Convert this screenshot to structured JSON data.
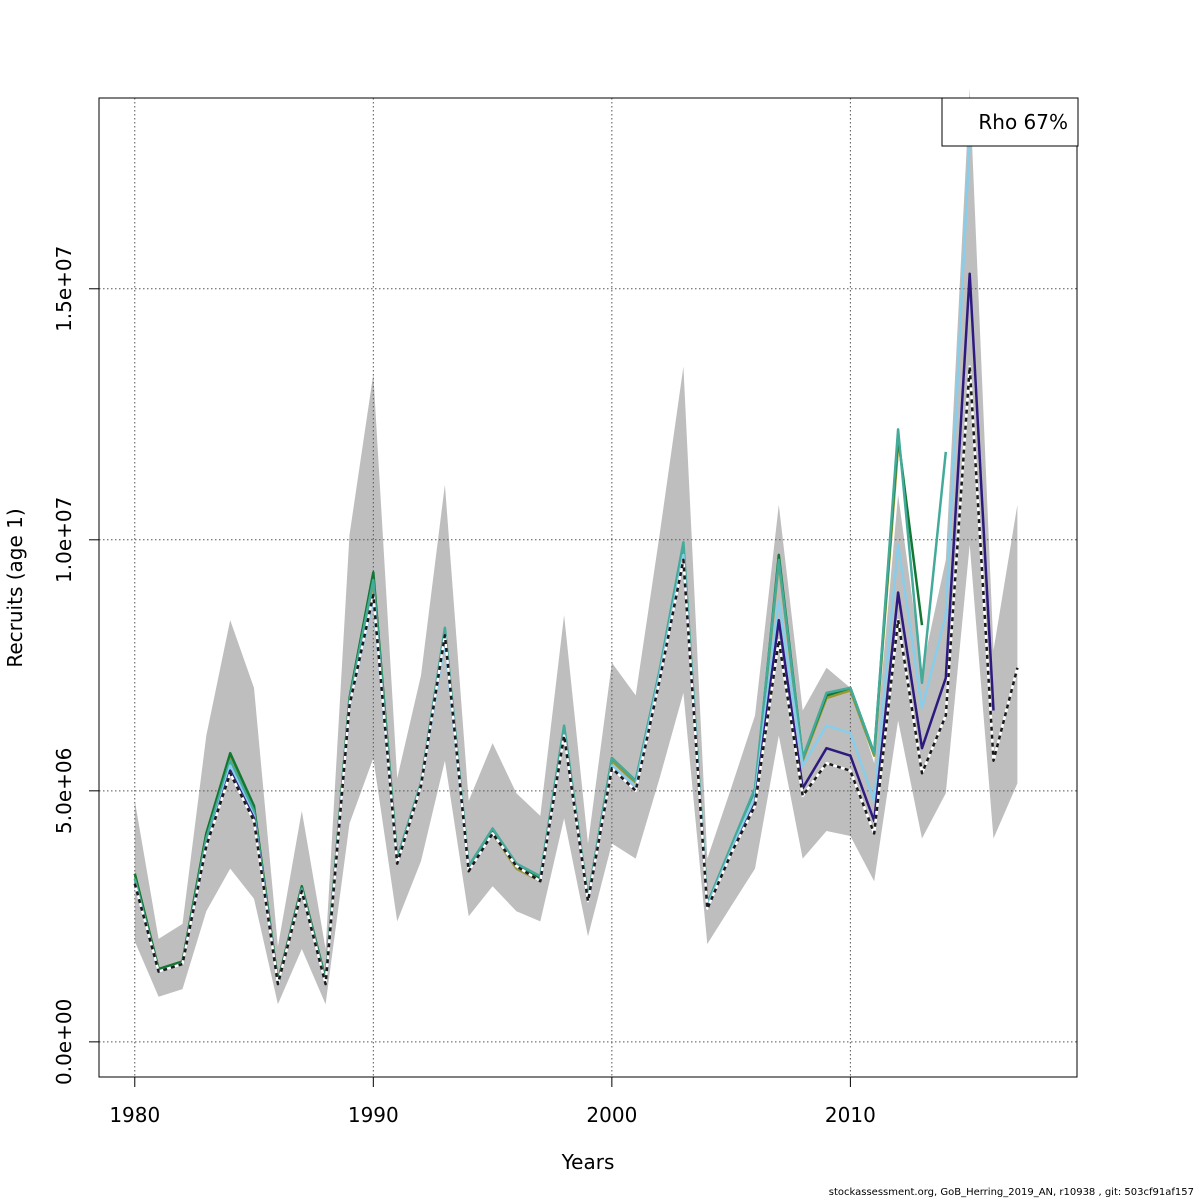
{
  "chart_data": {
    "type": "line",
    "xlabel": "Years",
    "ylabel": "Recruits (age 1)",
    "xlim": [
      1978.5,
      2019.5
    ],
    "ylim": [
      -700000,
      18800000
    ],
    "x_ticks": [
      1980,
      1990,
      2000,
      2010
    ],
    "y_ticks": [
      0,
      5000000,
      10000000,
      15000000
    ],
    "y_tick_labels": [
      "0.0e+00",
      "5.0e+06",
      "1.0e+07",
      "1.5e+07"
    ],
    "grid": true,
    "legend_position": "top-right",
    "legend_text": "Rho 67%",
    "band_color": "#bebebe",
    "confidence_band": {
      "x": [
        1980,
        1981,
        1982,
        1983,
        1984,
        1985,
        1986,
        1987,
        1988,
        1989,
        1990,
        1991,
        1992,
        1993,
        1994,
        1995,
        1996,
        1997,
        1998,
        1999,
        2000,
        2001,
        2002,
        2003,
        2004,
        2005,
        2006,
        2007,
        2008,
        2009,
        2010,
        2011,
        2012,
        2013,
        2014,
        2015,
        2016,
        2017
      ],
      "lower": [
        2000000,
        900000,
        1050000,
        2600000,
        3450000,
        2850000,
        750000,
        1850000,
        750000,
        4350000,
        5650000,
        2400000,
        3600000,
        5600000,
        2500000,
        3100000,
        2600000,
        2400000,
        4450000,
        2100000,
        3950000,
        3650000,
        5250000,
        6950000,
        1950000,
        2700000,
        3450000,
        6100000,
        3650000,
        4200000,
        4100000,
        3200000,
        6400000,
        4050000,
        4950000,
        9900000,
        4050000,
        5150000
      ],
      "upper": [
        4800000,
        2050000,
        2350000,
        6100000,
        8400000,
        7050000,
        1900000,
        4600000,
        1850000,
        10100000,
        13300000,
        5250000,
        7300000,
        11100000,
        4800000,
        5950000,
        4950000,
        4500000,
        8500000,
        3950000,
        7550000,
        6900000,
        10100000,
        13450000,
        3650000,
        5050000,
        6500000,
        10700000,
        6600000,
        7450000,
        7050000,
        5550000,
        10900000,
        7400000,
        9600000,
        19000000,
        7800000,
        10700000
      ]
    },
    "series": [
      {
        "color": "#1a1a1a",
        "dashed": true,
        "x": [
          1980,
          1981,
          1982,
          1983,
          1984,
          1985,
          1986,
          1987,
          1988,
          1989,
          1990,
          1991,
          1992,
          1993,
          1994,
          1995,
          1996,
          1997,
          1998,
          1999,
          2000,
          2001,
          2002,
          2003,
          2004,
          2005,
          2006,
          2007,
          2008,
          2009,
          2010,
          2011,
          2012,
          2013,
          2014,
          2015,
          2016,
          2017
        ],
        "values": [
          3150000,
          1400000,
          1550000,
          3900000,
          5350000,
          4400000,
          1150000,
          3000000,
          1150000,
          6700000,
          8900000,
          3550000,
          5100000,
          8100000,
          3400000,
          4150000,
          3500000,
          3200000,
          6100000,
          2800000,
          5450000,
          5000000,
          7200000,
          9600000,
          2650000,
          3750000,
          4700000,
          8000000,
          4900000,
          5550000,
          5400000,
          4150000,
          8400000,
          5350000,
          6500000,
          13450000,
          5600000,
          7450000
        ]
      },
      {
        "color": "#2e1a7e",
        "dashed": false,
        "x": [
          1980,
          1981,
          1982,
          1983,
          1984,
          1985,
          1986,
          1987,
          1988,
          1989,
          1990,
          1991,
          1992,
          1993,
          1994,
          1995,
          1996,
          1997,
          1998,
          1999,
          2000,
          2001,
          2002,
          2003,
          2004,
          2005,
          2006,
          2007,
          2008,
          2009,
          2010,
          2011,
          2012,
          2013,
          2014,
          2015,
          2016
        ],
        "values": [
          3150000,
          1400000,
          1550000,
          3900000,
          5400000,
          4450000,
          1150000,
          3000000,
          1150000,
          6700000,
          8900000,
          3550000,
          5100000,
          8100000,
          3400000,
          4150000,
          3500000,
          3200000,
          6100000,
          2800000,
          5450000,
          5000000,
          7200000,
          9600000,
          2650000,
          3750000,
          4750000,
          8400000,
          5050000,
          5850000,
          5700000,
          4400000,
          8950000,
          5850000,
          7250000,
          15300000,
          6600000
        ]
      },
      {
        "color": "#87ceeb",
        "dashed": false,
        "x": [
          1980,
          1981,
          1982,
          1983,
          1984,
          1985,
          1986,
          1987,
          1988,
          1989,
          1990,
          1991,
          1992,
          1993,
          1994,
          1995,
          1996,
          1997,
          1998,
          1999,
          2000,
          2001,
          2002,
          2003,
          2004,
          2005,
          2006,
          2007,
          2008,
          2009,
          2010,
          2011,
          2012,
          2013,
          2014,
          2015
        ],
        "values": [
          3150000,
          1400000,
          1550000,
          3900000,
          5500000,
          4500000,
          1150000,
          3000000,
          1150000,
          6700000,
          8800000,
          3550000,
          5100000,
          7950000,
          3400000,
          4150000,
          3500000,
          3200000,
          6100000,
          2800000,
          5500000,
          5100000,
          7300000,
          9700000,
          2700000,
          3800000,
          4900000,
          8800000,
          5500000,
          6300000,
          6150000,
          4800000,
          9900000,
          6650000,
          8500000,
          18000000
        ]
      },
      {
        "color": "#44aa99",
        "dashed": false,
        "x": [
          1980,
          1981,
          1982,
          1983,
          1984,
          1985,
          1986,
          1987,
          1988,
          1989,
          1990,
          1991,
          1992,
          1993,
          1994,
          1995,
          1996,
          1997,
          1998,
          1999,
          2000,
          2001,
          2002,
          2003,
          2004,
          2005,
          2006,
          2007,
          2008,
          2009,
          2010,
          2011,
          2012,
          2013,
          2014
        ],
        "values": [
          3250000,
          1400000,
          1550000,
          4050000,
          5600000,
          4600000,
          1150000,
          3050000,
          1200000,
          6800000,
          9200000,
          3650000,
          5150000,
          8250000,
          3500000,
          4250000,
          3550000,
          3300000,
          6300000,
          2850000,
          5650000,
          5200000,
          7400000,
          9950000,
          2750000,
          3900000,
          5050000,
          9600000,
          5650000,
          6950000,
          7050000,
          5750000,
          12200000,
          7150000,
          11750000
        ]
      },
      {
        "color": "#117733",
        "dashed": false,
        "x": [
          1980,
          1981,
          1982,
          1983,
          1984,
          1985,
          1986,
          1987,
          1988,
          1989,
          1990,
          1991,
          1992,
          1993,
          1994,
          1995,
          1996,
          1997,
          1998,
          1999,
          2000,
          2001,
          2002,
          2003,
          2004,
          2005,
          2006,
          2007,
          2008,
          2009,
          2010,
          2011,
          2012,
          2013
        ],
        "values": [
          3350000,
          1450000,
          1600000,
          4150000,
          5750000,
          4700000,
          1200000,
          3100000,
          1250000,
          6850000,
          9350000,
          3650000,
          5150000,
          8200000,
          3450000,
          4200000,
          3500000,
          3250000,
          6250000,
          2850000,
          5650000,
          5200000,
          7350000,
          9800000,
          2750000,
          3850000,
          4950000,
          9700000,
          5650000,
          6900000,
          7050000,
          5750000,
          12050000,
          8300000
        ]
      },
      {
        "color": "#999933",
        "dashed": false,
        "x": [
          1980,
          1981,
          1982,
          1983,
          1984,
          1985,
          1986,
          1987,
          1988,
          1989,
          1990,
          1991,
          1992,
          1993,
          1994,
          1995,
          1996,
          1997,
          1998,
          1999,
          2000,
          2001,
          2002,
          2003,
          2004,
          2005,
          2006,
          2007,
          2008,
          2009,
          2010,
          2011,
          2012
        ],
        "values": [
          3350000,
          1450000,
          1600000,
          4150000,
          5650000,
          4650000,
          1200000,
          3050000,
          1200000,
          6800000,
          9150000,
          3550000,
          5100000,
          8100000,
          3400000,
          4150000,
          3450000,
          3200000,
          6150000,
          2800000,
          5600000,
          5150000,
          7350000,
          9650000,
          2750000,
          3850000,
          4950000,
          9550000,
          5600000,
          6850000,
          7000000,
          5700000,
          11850000
        ]
      }
    ]
  },
  "credit": "stockassessment.org, GoB_Herring_2019_AN, r10938 , git: 503cf91af157"
}
